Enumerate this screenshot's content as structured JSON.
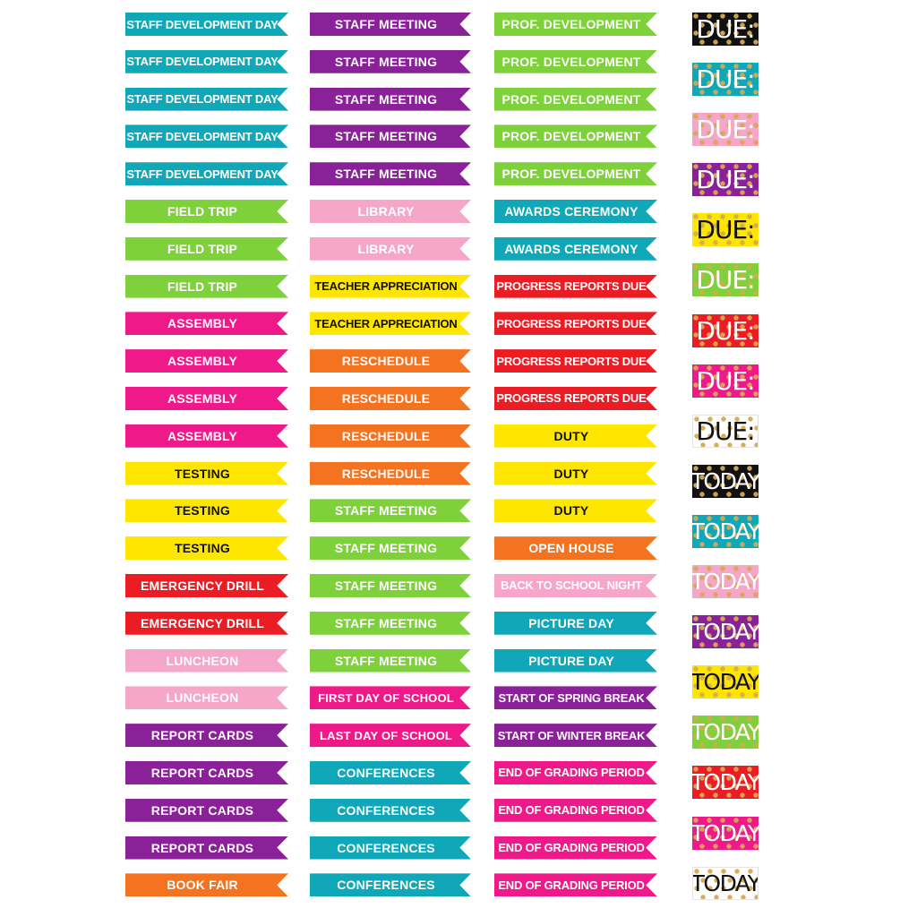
{
  "columns": [
    [
      {
        "text": "STAFF DEVELOPMENT DAY",
        "bg": "#10a8b9",
        "fg": "#ffffff"
      },
      {
        "text": "STAFF DEVELOPMENT DAY",
        "bg": "#10a8b9",
        "fg": "#ffffff"
      },
      {
        "text": "STAFF DEVELOPMENT DAY",
        "bg": "#10a8b9",
        "fg": "#ffffff"
      },
      {
        "text": "STAFF DEVELOPMENT DAY",
        "bg": "#10a8b9",
        "fg": "#ffffff"
      },
      {
        "text": "STAFF DEVELOPMENT DAY",
        "bg": "#10a8b9",
        "fg": "#ffffff"
      },
      {
        "text": "FIELD TRIP",
        "bg": "#7ed13a",
        "fg": "#ffffff"
      },
      {
        "text": "FIELD TRIP",
        "bg": "#7ed13a",
        "fg": "#ffffff"
      },
      {
        "text": "FIELD TRIP",
        "bg": "#7ed13a",
        "fg": "#ffffff"
      },
      {
        "text": "ASSEMBLY",
        "bg": "#f0198a",
        "fg": "#ffffff"
      },
      {
        "text": "ASSEMBLY",
        "bg": "#f0198a",
        "fg": "#ffffff"
      },
      {
        "text": "ASSEMBLY",
        "bg": "#f0198a",
        "fg": "#ffffff"
      },
      {
        "text": "ASSEMBLY",
        "bg": "#f0198a",
        "fg": "#ffffff"
      },
      {
        "text": "TESTING",
        "bg": "#ffe600",
        "fg": "#111111"
      },
      {
        "text": "TESTING",
        "bg": "#ffe600",
        "fg": "#111111"
      },
      {
        "text": "TESTING",
        "bg": "#ffe600",
        "fg": "#111111"
      },
      {
        "text": "EMERGENCY DRILL",
        "bg": "#ec1c24",
        "fg": "#ffffff"
      },
      {
        "text": "EMERGENCY DRILL",
        "bg": "#ec1c24",
        "fg": "#ffffff"
      },
      {
        "text": "LUNCHEON",
        "bg": "#f5a6c9",
        "fg": "#ffffff"
      },
      {
        "text": "LUNCHEON",
        "bg": "#f5a6c9",
        "fg": "#ffffff"
      },
      {
        "text": "REPORT CARDS",
        "bg": "#8a2198",
        "fg": "#ffffff"
      },
      {
        "text": "REPORT CARDS",
        "bg": "#8a2198",
        "fg": "#ffffff"
      },
      {
        "text": "REPORT CARDS",
        "bg": "#8a2198",
        "fg": "#ffffff"
      },
      {
        "text": "REPORT CARDS",
        "bg": "#8a2198",
        "fg": "#ffffff"
      },
      {
        "text": "BOOK FAIR",
        "bg": "#f47320",
        "fg": "#ffffff"
      }
    ],
    [
      {
        "text": "STAFF MEETING",
        "bg": "#8a2198",
        "fg": "#ffffff"
      },
      {
        "text": "STAFF MEETING",
        "bg": "#8a2198",
        "fg": "#ffffff"
      },
      {
        "text": "STAFF MEETING",
        "bg": "#8a2198",
        "fg": "#ffffff"
      },
      {
        "text": "STAFF MEETING",
        "bg": "#8a2198",
        "fg": "#ffffff"
      },
      {
        "text": "STAFF MEETING",
        "bg": "#8a2198",
        "fg": "#ffffff"
      },
      {
        "text": "LIBRARY",
        "bg": "#f5a6c9",
        "fg": "#ffffff"
      },
      {
        "text": "LIBRARY",
        "bg": "#f5a6c9",
        "fg": "#ffffff"
      },
      {
        "text": "TEACHER APPRECIATION",
        "bg": "#ffe600",
        "fg": "#111111"
      },
      {
        "text": "TEACHER APPRECIATION",
        "bg": "#ffe600",
        "fg": "#111111"
      },
      {
        "text": "RESCHEDULE",
        "bg": "#f47320",
        "fg": "#ffffff"
      },
      {
        "text": "RESCHEDULE",
        "bg": "#f47320",
        "fg": "#ffffff"
      },
      {
        "text": "RESCHEDULE",
        "bg": "#f47320",
        "fg": "#ffffff"
      },
      {
        "text": "RESCHEDULE",
        "bg": "#f47320",
        "fg": "#ffffff"
      },
      {
        "text": "STAFF MEETING",
        "bg": "#7ed13a",
        "fg": "#ffffff"
      },
      {
        "text": "STAFF MEETING",
        "bg": "#7ed13a",
        "fg": "#ffffff"
      },
      {
        "text": "STAFF MEETING",
        "bg": "#7ed13a",
        "fg": "#ffffff"
      },
      {
        "text": "STAFF MEETING",
        "bg": "#7ed13a",
        "fg": "#ffffff"
      },
      {
        "text": "STAFF MEETING",
        "bg": "#7ed13a",
        "fg": "#ffffff"
      },
      {
        "text": "FIRST DAY OF SCHOOL",
        "bg": "#f0198a",
        "fg": "#ffffff"
      },
      {
        "text": "LAST DAY OF SCHOOL",
        "bg": "#f0198a",
        "fg": "#ffffff"
      },
      {
        "text": "CONFERENCES",
        "bg": "#10a8b9",
        "fg": "#ffffff"
      },
      {
        "text": "CONFERENCES",
        "bg": "#10a8b9",
        "fg": "#ffffff"
      },
      {
        "text": "CONFERENCES",
        "bg": "#10a8b9",
        "fg": "#ffffff"
      },
      {
        "text": "CONFERENCES",
        "bg": "#10a8b9",
        "fg": "#ffffff"
      }
    ],
    [
      {
        "text": "PROF. DEVELOPMENT",
        "bg": "#7ed13a",
        "fg": "#ffffff"
      },
      {
        "text": "PROF. DEVELOPMENT",
        "bg": "#7ed13a",
        "fg": "#ffffff"
      },
      {
        "text": "PROF. DEVELOPMENT",
        "bg": "#7ed13a",
        "fg": "#ffffff"
      },
      {
        "text": "PROF. DEVELOPMENT",
        "bg": "#7ed13a",
        "fg": "#ffffff"
      },
      {
        "text": "PROF. DEVELOPMENT",
        "bg": "#7ed13a",
        "fg": "#ffffff"
      },
      {
        "text": "AWARDS CEREMONY",
        "bg": "#10a8b9",
        "fg": "#ffffff"
      },
      {
        "text": "AWARDS CEREMONY",
        "bg": "#10a8b9",
        "fg": "#ffffff"
      },
      {
        "text": "PROGRESS REPORTS DUE",
        "bg": "#ec1c24",
        "fg": "#ffffff"
      },
      {
        "text": "PROGRESS REPORTS DUE",
        "bg": "#ec1c24",
        "fg": "#ffffff"
      },
      {
        "text": "PROGRESS REPORTS DUE",
        "bg": "#ec1c24",
        "fg": "#ffffff"
      },
      {
        "text": "PROGRESS REPORTS DUE",
        "bg": "#ec1c24",
        "fg": "#ffffff"
      },
      {
        "text": "DUTY",
        "bg": "#ffe600",
        "fg": "#111111"
      },
      {
        "text": "DUTY",
        "bg": "#ffe600",
        "fg": "#111111"
      },
      {
        "text": "DUTY",
        "bg": "#ffe600",
        "fg": "#111111"
      },
      {
        "text": "OPEN HOUSE",
        "bg": "#f47320",
        "fg": "#ffffff"
      },
      {
        "text": "BACK TO SCHOOL NIGHT",
        "bg": "#f5a6c9",
        "fg": "#ffffff"
      },
      {
        "text": "PICTURE DAY",
        "bg": "#10a8b9",
        "fg": "#ffffff"
      },
      {
        "text": "PICTURE DAY",
        "bg": "#10a8b9",
        "fg": "#ffffff"
      },
      {
        "text": "START OF SPRING BREAK",
        "bg": "#8a2198",
        "fg": "#ffffff"
      },
      {
        "text": "START OF WINTER BREAK",
        "bg": "#8a2198",
        "fg": "#ffffff"
      },
      {
        "text": "END OF GRADING PERIOD",
        "bg": "#f0198a",
        "fg": "#ffffff"
      },
      {
        "text": "END OF GRADING PERIOD",
        "bg": "#f0198a",
        "fg": "#ffffff"
      },
      {
        "text": "END OF GRADING PERIOD",
        "bg": "#f0198a",
        "fg": "#ffffff"
      },
      {
        "text": "END OF GRADING PERIOD",
        "bg": "#f0198a",
        "fg": "#ffffff"
      }
    ]
  ],
  "badges": [
    {
      "text": "DUE:",
      "bg": "#111111",
      "fg": "#ffffff"
    },
    {
      "text": "DUE:",
      "bg": "#10a8b9",
      "fg": "#ffffff"
    },
    {
      "text": "DUE:",
      "bg": "#f5a6c9",
      "fg": "#ffffff"
    },
    {
      "text": "DUE:",
      "bg": "#8a2198",
      "fg": "#ffffff"
    },
    {
      "text": "DUE:",
      "bg": "#ffe600",
      "fg": "#111111"
    },
    {
      "text": "DUE:",
      "bg": "#7ed13a",
      "fg": "#ffffff"
    },
    {
      "text": "DUE:",
      "bg": "#ec1c24",
      "fg": "#ffffff"
    },
    {
      "text": "DUE:",
      "bg": "#f0198a",
      "fg": "#ffffff"
    },
    {
      "text": "DUE:",
      "bg": "#ffffff",
      "fg": "#111111"
    },
    {
      "text": "TODAY",
      "bg": "#111111",
      "fg": "#ffffff"
    },
    {
      "text": "TODAY",
      "bg": "#10a8b9",
      "fg": "#ffffff"
    },
    {
      "text": "TODAY",
      "bg": "#f5a6c9",
      "fg": "#ffffff"
    },
    {
      "text": "TODAY",
      "bg": "#8a2198",
      "fg": "#ffffff"
    },
    {
      "text": "TODAY",
      "bg": "#ffe600",
      "fg": "#111111"
    },
    {
      "text": "TODAY",
      "bg": "#7ed13a",
      "fg": "#ffffff"
    },
    {
      "text": "TODAY",
      "bg": "#ec1c24",
      "fg": "#ffffff"
    },
    {
      "text": "TODAY",
      "bg": "#f0198a",
      "fg": "#ffffff"
    },
    {
      "text": "TODAY",
      "bg": "#ffffff",
      "fg": "#111111"
    }
  ]
}
